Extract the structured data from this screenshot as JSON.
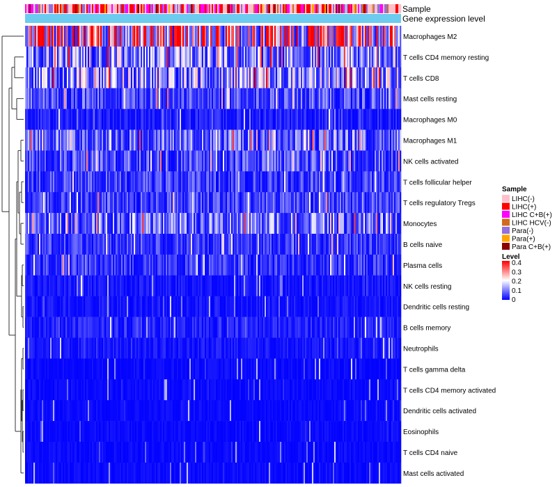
{
  "chart_data": {
    "type": "heatmap",
    "annotation_rows": [
      "Sample",
      "Gene expression level"
    ],
    "annotation_colors": {
      "gene_expression_level": "#6ccbef"
    },
    "rows": [
      {
        "name": "Macrophages M2",
        "mean": 0.3
      },
      {
        "name": "T cells CD4 memory resting",
        "mean": 0.13
      },
      {
        "name": "T cells CD8",
        "mean": 0.14
      },
      {
        "name": "Mast cells resting",
        "mean": 0.07
      },
      {
        "name": "Macrophages M0",
        "mean": 0.03
      },
      {
        "name": "Macrophages M1",
        "mean": 0.09
      },
      {
        "name": "NK cells activated",
        "mean": 0.07
      },
      {
        "name": "T cells follicular helper",
        "mean": 0.06
      },
      {
        "name": "T cells regulatory  Tregs",
        "mean": 0.06
      },
      {
        "name": "Monocytes",
        "mean": 0.1
      },
      {
        "name": "B cells naive",
        "mean": 0.05
      },
      {
        "name": "Plasma cells",
        "mean": 0.05
      },
      {
        "name": "NK cells resting",
        "mean": 0.02
      },
      {
        "name": "Dendritic cells resting",
        "mean": 0.02
      },
      {
        "name": "B cells memory",
        "mean": 0.03
      },
      {
        "name": "Neutrophils",
        "mean": 0.02
      },
      {
        "name": "T cells gamma delta",
        "mean": 0.01
      },
      {
        "name": "T cells CD4 memory activated",
        "mean": 0.01
      },
      {
        "name": "Dendritic cells activated",
        "mean": 0.01
      },
      {
        "name": "Eosinophils",
        "mean": 0.01
      },
      {
        "name": "T cells CD4 naive",
        "mean": 0.01
      },
      {
        "name": "Mast cells activated",
        "mean": 0.01
      }
    ],
    "legend_sample": {
      "title": "Sample",
      "entries": [
        {
          "label": "LIHC(-)",
          "color": "#ffc0cb"
        },
        {
          "label": "LIHC(+)",
          "color": "#ff0000"
        },
        {
          "label": "LIHC C+B(+)",
          "color": "#ff00ff"
        },
        {
          "label": "LIHC HCV(-)",
          "color": "#d2691e"
        },
        {
          "label": "Para(-)",
          "color": "#9370db"
        },
        {
          "label": "Para(+)",
          "color": "#ffa500"
        },
        {
          "label": "Para C+B(+)",
          "color": "#8b0000"
        }
      ]
    },
    "legend_level": {
      "title": "Level",
      "ticks": [
        "0.4",
        "0.3",
        "0.2",
        "0.1",
        "0"
      ],
      "range": [
        0,
        0.4
      ],
      "colors": [
        "#0000ff",
        "#ffffff",
        "#ff0000"
      ]
    }
  }
}
